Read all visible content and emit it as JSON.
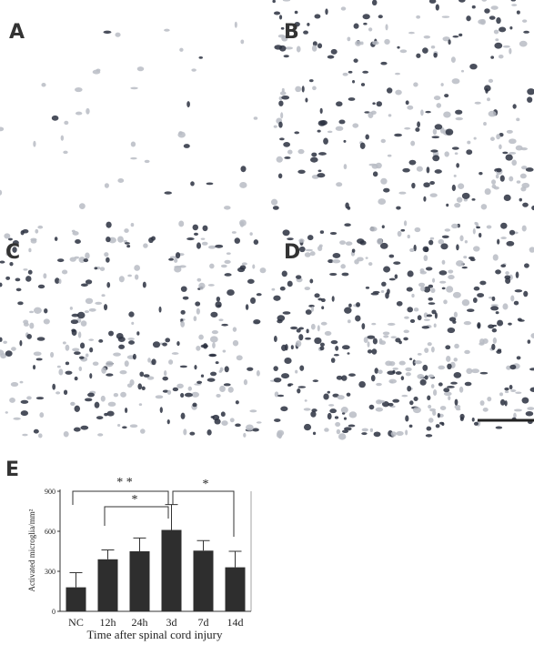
{
  "panels": [
    "A",
    "B",
    "C",
    "D"
  ],
  "chart_label": "E",
  "chart_data": {
    "type": "bar",
    "categories": [
      "NC",
      "12h",
      "24h",
      "3d",
      "7d",
      "14d"
    ],
    "values": [
      180,
      390,
      450,
      610,
      455,
      330
    ],
    "errors": [
      110,
      70,
      100,
      190,
      75,
      120
    ],
    "color": "#2e2e2e",
    "ylim": [
      0,
      900
    ],
    "yticks": [
      0,
      300,
      600,
      900
    ],
    "y_label": "Activated microglia/mm²",
    "x_label": "Time after spinal cord injury",
    "annotations": [
      "* *",
      "*",
      "*"
    ]
  }
}
